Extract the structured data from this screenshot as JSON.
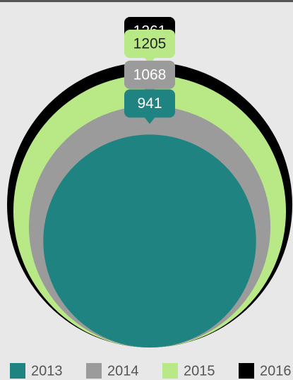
{
  "chart_data": {
    "type": "nested-circle",
    "categories": [
      "2013",
      "2014",
      "2015",
      "2016"
    ],
    "values": [
      941,
      1068,
      1205,
      1261
    ],
    "colors": [
      "#1f8481",
      "#9b9b9b",
      "#b8e986",
      "#000000"
    ],
    "label_colors": [
      "#ffffff",
      "#ffffff",
      "#222222",
      "#ffffff"
    ]
  }
}
